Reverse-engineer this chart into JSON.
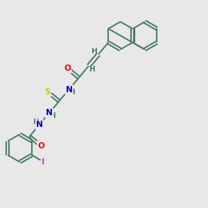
{
  "bg_color": "#e8e8e8",
  "bond_color": "#4a7a6a",
  "bond_width": 1.5,
  "atom_colors": {
    "N": "#0000cc",
    "O": "#ff0000",
    "S": "#cccc00",
    "I": "#cc44cc",
    "H": "#4a7a6a"
  },
  "font_size": 8.5,
  "fig_width": 3.0,
  "fig_height": 3.0,
  "dpi": 100
}
